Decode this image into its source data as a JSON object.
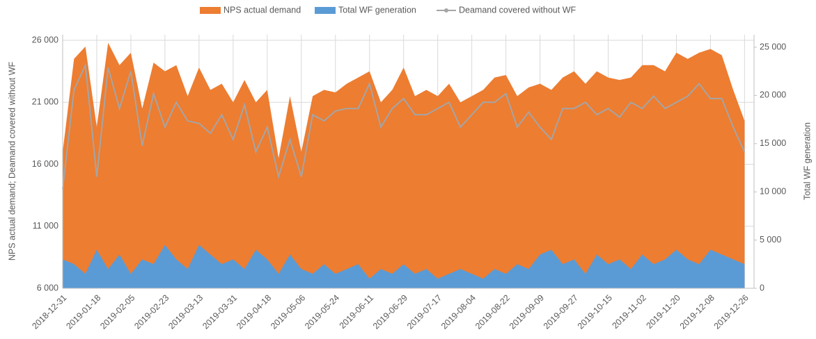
{
  "chart_data": {
    "type": "area",
    "x": [
      "2018-12-31",
      "2019-01-06",
      "2019-01-12",
      "2019-01-18",
      "2019-01-24",
      "2019-01-30",
      "2019-02-05",
      "2019-02-11",
      "2019-02-17",
      "2019-02-23",
      "2019-03-01",
      "2019-03-07",
      "2019-03-13",
      "2019-03-19",
      "2019-03-25",
      "2019-03-31",
      "2019-04-06",
      "2019-04-12",
      "2019-04-18",
      "2019-04-24",
      "2019-04-30",
      "2019-05-06",
      "2019-05-12",
      "2019-05-18",
      "2019-05-24",
      "2019-05-30",
      "2019-06-05",
      "2019-06-11",
      "2019-06-17",
      "2019-06-23",
      "2019-06-29",
      "2019-07-05",
      "2019-07-11",
      "2019-07-17",
      "2019-07-23",
      "2019-07-29",
      "2019-08-04",
      "2019-08-10",
      "2019-08-16",
      "2019-08-22",
      "2019-08-28",
      "2019-09-03",
      "2019-09-09",
      "2019-09-15",
      "2019-09-21",
      "2019-09-27",
      "2019-10-03",
      "2019-10-09",
      "2019-10-15",
      "2019-10-21",
      "2019-10-27",
      "2019-11-02",
      "2019-11-08",
      "2019-11-14",
      "2019-11-20",
      "2019-11-26",
      "2019-12-02",
      "2019-12-08",
      "2019-12-14",
      "2019-12-20",
      "2019-12-26"
    ],
    "series": [
      {
        "name": "NPS actual demand",
        "type": "area",
        "axis": "y",
        "color": "#ED7D31",
        "values": [
          17000,
          24500,
          25500,
          19000,
          25800,
          24000,
          25000,
          20500,
          24200,
          23500,
          24000,
          21500,
          23800,
          22000,
          22500,
          21000,
          22800,
          21000,
          22000,
          16500,
          21500,
          17000,
          21500,
          22000,
          21800,
          22500,
          23000,
          23500,
          21000,
          22000,
          23800,
          21500,
          22000,
          21500,
          22500,
          21000,
          21500,
          22000,
          23000,
          23200,
          21500,
          22200,
          22500,
          22000,
          23000,
          23500,
          22500,
          23500,
          23000,
          22800,
          23000,
          24000,
          24000,
          23500,
          25000,
          24500,
          25000,
          25300,
          24800,
          22000,
          19500
        ]
      },
      {
        "name": "Total WF generation",
        "type": "area",
        "axis": "y2",
        "color": "#5B9BD5",
        "values": [
          3000,
          2500,
          1500,
          4000,
          2000,
          3500,
          1500,
          3000,
          2500,
          4500,
          3000,
          2000,
          4500,
          3500,
          2500,
          3000,
          2000,
          4000,
          3000,
          1500,
          3500,
          2000,
          1500,
          2500,
          1500,
          2000,
          2500,
          1000,
          2000,
          1500,
          2500,
          1500,
          2000,
          1000,
          1500,
          2000,
          1500,
          1000,
          2000,
          1500,
          2500,
          2000,
          3500,
          4000,
          2500,
          3000,
          1500,
          3500,
          2500,
          3000,
          2000,
          3500,
          2500,
          3000,
          4000,
          3000,
          2500,
          4000,
          3500,
          3000,
          2500
        ]
      },
      {
        "name": "Deamand covered without WF",
        "type": "line",
        "axis": "y",
        "color": "#A5A5A5",
        "values": [
          14000,
          22000,
          24000,
          15000,
          23800,
          20500,
          23500,
          17500,
          21700,
          19000,
          21000,
          19500,
          19300,
          18500,
          20000,
          18000,
          20800,
          17000,
          19000,
          15000,
          18000,
          15000,
          20000,
          19500,
          20300,
          20500,
          20500,
          22500,
          19000,
          20500,
          21300,
          20000,
          20000,
          20500,
          21000,
          19000,
          20000,
          21000,
          21000,
          21700,
          19000,
          20200,
          19000,
          18000,
          20500,
          20500,
          21000,
          20000,
          20500,
          19800,
          21000,
          20500,
          21500,
          20500,
          21000,
          21500,
          22500,
          21300,
          21300,
          19000,
          17000
        ]
      }
    ],
    "y_label": "NPS actual demand; Deamand covered without WF",
    "y2_label": "Total WF generation",
    "xlim": [
      "2018-12-31",
      "2019-12-31"
    ],
    "xticks": [
      "2018-12-31",
      "2019-01-18",
      "2019-02-05",
      "2019-02-23",
      "2019-03-13",
      "2019-03-31",
      "2019-04-18",
      "2019-05-06",
      "2019-05-24",
      "2019-06-11",
      "2019-06-29",
      "2019-07-17",
      "2019-08-04",
      "2019-08-22",
      "2019-09-09",
      "2019-09-27",
      "2019-10-15",
      "2019-11-02",
      "2019-11-20",
      "2019-12-08",
      "2019-12-26"
    ],
    "ylim": [
      6000,
      26450
    ],
    "yticks": [
      {
        "value": 6000,
        "label": "6 000"
      },
      {
        "value": 11000,
        "label": "11 000"
      },
      {
        "value": 16000,
        "label": "16 000"
      },
      {
        "value": 21000,
        "label": "21 000"
      },
      {
        "value": 26000,
        "label": "26 000"
      }
    ],
    "y2lim": [
      0,
      26300
    ],
    "y2ticks": [
      0,
      {
        "value": 5000,
        "label": "5 000"
      },
      {
        "value": 10000,
        "label": "10 000"
      },
      {
        "value": 15000,
        "label": "15 000"
      },
      {
        "value": 20000,
        "label": "20 000"
      },
      {
        "value": 25000,
        "label": "25 000"
      }
    ],
    "grid": true,
    "legend": "top"
  }
}
